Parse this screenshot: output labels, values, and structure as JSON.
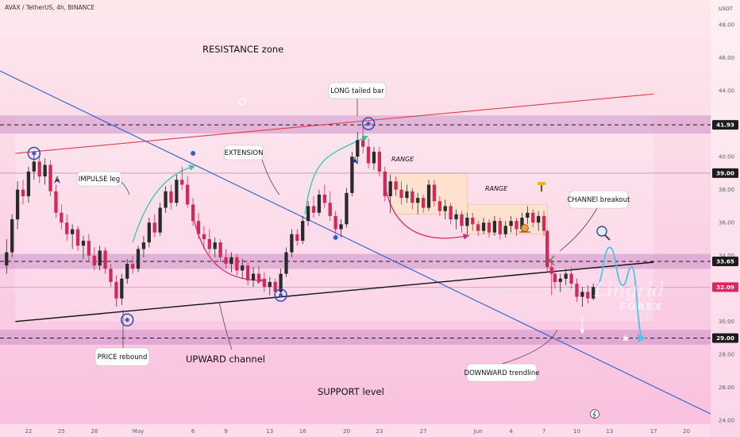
{
  "header": {
    "title": "AVAX / TetherUS, 4h, BINANCE",
    "currency": "USDT"
  },
  "colors": {
    "background_top": "#fde8ec",
    "background_bottom": "#f9c0df",
    "candle_up": "#2a2a2a",
    "candle_down": "#d02a5a",
    "level_line": "#1a1a1a",
    "trend_blue": "#2f5fd0",
    "trend_red": "#e03c4a",
    "channel_black": "#111111",
    "teal_arrow": "#36c8a8",
    "pink_arrow": "#d0306c",
    "tag_bg": "#1c1c1c",
    "current_tag_bg": "#e0245e",
    "zone_purple": "#c98ac5"
  },
  "chart_data": {
    "type": "candlestick",
    "symbol": "AVAX / TetherUS",
    "timeframe": "4h",
    "exchange": "BINANCE",
    "y_axis": {
      "ticks": [
        "48.00",
        "46.00",
        "44.00",
        "42.00",
        "40.00",
        "38.00",
        "36.00",
        "34.00",
        "32.00",
        "30.00",
        "28.00",
        "26.00",
        "24.00"
      ],
      "ylim": [
        23.0,
        49.5
      ]
    },
    "x_axis": {
      "ticks": [
        "22",
        "25",
        "28",
        "May",
        "6",
        "9",
        "13",
        "16",
        "20",
        "23",
        "27",
        "Jun",
        "4",
        "7",
        "10",
        "13",
        "17",
        "20"
      ],
      "tick_days": [
        -9,
        -6,
        -3,
        1,
        6,
        9,
        13,
        16,
        20,
        23,
        27,
        32,
        35,
        38,
        41,
        44,
        48,
        51
      ],
      "xlim": [
        -11.6,
        53.2
      ]
    },
    "price_levels": [
      {
        "value": 41.93,
        "label": "41.93",
        "style": "dashed",
        "tag": "dark"
      },
      {
        "value": 39.0,
        "label": "39.00",
        "style": "thin",
        "tag": "dark"
      },
      {
        "value": 33.65,
        "label": "33.65",
        "style": "dashed",
        "tag": "dark"
      },
      {
        "value": 32.09,
        "label": "32.09",
        "style": "thin-red",
        "tag": "current"
      },
      {
        "value": 29.0,
        "label": "29.00",
        "style": "dashed",
        "tag": "dark"
      }
    ],
    "zones": [
      {
        "name": "resistance",
        "y": [
          41.4,
          42.5
        ]
      },
      {
        "name": "mid-support",
        "y": [
          33.2,
          34.1
        ]
      },
      {
        "name": "support",
        "y": [
          28.6,
          29.5
        ]
      },
      {
        "name": "range-1",
        "x": [
          24.0,
          31.0
        ],
        "y": [
          36.5,
          39.0
        ]
      },
      {
        "name": "range-2",
        "x": [
          31.0,
          38.3
        ],
        "y": [
          35.3,
          37.1
        ]
      }
    ],
    "trendlines": [
      {
        "name": "downward-trendline",
        "color": "blue",
        "points": [
          [
            -11.6,
            45.2
          ],
          [
            53.2,
            24.4
          ]
        ]
      },
      {
        "name": "channel-top",
        "color": "red",
        "points": [
          [
            -10.2,
            40.2
          ],
          [
            48.0,
            43.8
          ]
        ]
      },
      {
        "name": "upward-channel-bottom",
        "color": "black",
        "points": [
          [
            -10.2,
            30.0
          ],
          [
            48.0,
            33.6
          ]
        ]
      }
    ],
    "candles": [
      [
        -11,
        33.4,
        35.0,
        32.9,
        34.2
      ],
      [
        -10.5,
        34.2,
        36.5,
        33.9,
        36.2
      ],
      [
        -10,
        36.2,
        38.5,
        35.6,
        38.0
      ],
      [
        -9.5,
        38.0,
        38.6,
        37.1,
        37.6
      ],
      [
        -9,
        37.6,
        39.4,
        37.2,
        39.1
      ],
      [
        -8.5,
        39.1,
        40.2,
        38.6,
        39.7
      ],
      [
        -8,
        39.7,
        40.1,
        38.4,
        38.8
      ],
      [
        -7.5,
        38.8,
        39.9,
        38.3,
        39.5
      ],
      [
        -7,
        39.5,
        39.8,
        37.6,
        37.9
      ],
      [
        -6.5,
        37.9,
        38.3,
        36.3,
        36.6
      ],
      [
        -6,
        36.6,
        37.1,
        35.6,
        36.0
      ],
      [
        -5.5,
        36.0,
        36.5,
        34.9,
        35.3
      ],
      [
        -5,
        35.3,
        35.9,
        34.4,
        35.6
      ],
      [
        -4.5,
        35.6,
        35.8,
        34.3,
        34.6
      ],
      [
        -4,
        34.6,
        35.2,
        33.8,
        34.9
      ],
      [
        -3.5,
        34.9,
        35.3,
        33.7,
        34.0
      ],
      [
        -3,
        34.0,
        34.5,
        33.1,
        33.4
      ],
      [
        -2.5,
        33.4,
        34.6,
        33.1,
        34.3
      ],
      [
        -2,
        34.3,
        34.5,
        32.9,
        33.2
      ],
      [
        -1.5,
        33.2,
        33.5,
        32.1,
        32.4
      ],
      [
        -1,
        32.4,
        32.8,
        30.9,
        31.4
      ],
      [
        -0.5,
        31.4,
        32.9,
        31.0,
        32.6
      ],
      [
        0,
        32.6,
        33.8,
        32.3,
        33.5
      ],
      [
        0.5,
        33.5,
        34.0,
        32.9,
        33.2
      ],
      [
        1,
        33.2,
        34.6,
        33.0,
        34.4
      ],
      [
        1.5,
        34.4,
        35.2,
        33.9,
        34.8
      ],
      [
        2,
        34.8,
        36.3,
        34.5,
        36.0
      ],
      [
        2.5,
        36.0,
        36.5,
        35.1,
        35.4
      ],
      [
        3,
        35.4,
        37.2,
        35.2,
        36.9
      ],
      [
        3.5,
        36.9,
        38.2,
        36.6,
        37.9
      ],
      [
        4,
        37.9,
        38.3,
        36.8,
        37.2
      ],
      [
        4.5,
        37.2,
        38.9,
        37.0,
        38.6
      ],
      [
        5,
        38.6,
        39.4,
        38.0,
        38.3
      ],
      [
        5.5,
        38.3,
        38.8,
        36.9,
        37.1
      ],
      [
        6,
        37.1,
        37.5,
        35.8,
        36.1
      ],
      [
        6.5,
        36.1,
        36.6,
        35.0,
        35.3
      ],
      [
        7,
        35.3,
        35.8,
        34.4,
        35.0
      ],
      [
        7.5,
        35.0,
        35.6,
        34.1,
        34.4
      ],
      [
        8,
        34.4,
        35.1,
        33.9,
        34.8
      ],
      [
        8.5,
        34.8,
        35.0,
        33.6,
        33.9
      ],
      [
        9,
        33.9,
        34.4,
        33.2,
        33.5
      ],
      [
        9.5,
        33.5,
        34.2,
        33.0,
        33.9
      ],
      [
        10,
        33.9,
        34.1,
        32.8,
        33.1
      ],
      [
        10.5,
        33.1,
        33.8,
        32.6,
        33.4
      ],
      [
        11,
        33.4,
        33.6,
        32.2,
        32.5
      ],
      [
        11.5,
        32.5,
        33.3,
        32.1,
        32.9
      ],
      [
        12,
        32.9,
        33.4,
        32.3,
        32.6
      ],
      [
        12.5,
        32.6,
        33.0,
        31.8,
        32.1
      ],
      [
        13,
        32.1,
        32.7,
        31.6,
        32.4
      ],
      [
        13.5,
        32.4,
        32.6,
        31.5,
        31.8
      ],
      [
        14,
        31.8,
        33.2,
        31.6,
        32.9
      ],
      [
        14.5,
        32.9,
        34.5,
        32.7,
        34.2
      ],
      [
        15,
        34.2,
        35.6,
        33.9,
        35.3
      ],
      [
        15.5,
        35.3,
        35.6,
        34.6,
        34.9
      ],
      [
        16,
        34.9,
        36.4,
        34.7,
        36.1
      ],
      [
        16.5,
        36.1,
        37.3,
        35.8,
        37.0
      ],
      [
        17,
        37.0,
        37.6,
        36.3,
        36.6
      ],
      [
        17.5,
        36.6,
        38.0,
        36.4,
        37.7
      ],
      [
        18,
        37.7,
        38.3,
        36.9,
        37.2
      ],
      [
        18.5,
        37.2,
        37.9,
        36.1,
        36.4
      ],
      [
        19,
        36.4,
        36.7,
        35.3,
        35.6
      ],
      [
        19.5,
        35.6,
        36.2,
        35.1,
        35.9
      ],
      [
        20,
        35.9,
        38.1,
        35.7,
        37.8
      ],
      [
        20.5,
        37.8,
        40.3,
        37.6,
        40.0
      ],
      [
        21,
        40.0,
        41.5,
        39.6,
        41.0
      ],
      [
        21.5,
        41.0,
        42.0,
        40.2,
        40.6
      ],
      [
        22,
        40.6,
        41.1,
        39.3,
        39.6
      ],
      [
        22.5,
        39.6,
        40.6,
        39.2,
        40.3
      ],
      [
        23,
        40.3,
        40.6,
        38.8,
        39.1
      ],
      [
        23.5,
        39.1,
        39.4,
        37.3,
        37.6
      ],
      [
        24,
        37.6,
        38.9,
        36.6,
        38.5
      ],
      [
        24.5,
        38.5,
        38.8,
        37.6,
        38.0
      ],
      [
        25,
        38.0,
        38.5,
        37.1,
        37.5
      ],
      [
        25.5,
        37.5,
        38.3,
        37.2,
        37.9
      ],
      [
        26,
        37.9,
        38.1,
        36.8,
        37.2
      ],
      [
        26.5,
        37.2,
        37.8,
        36.5,
        37.5
      ],
      [
        27,
        37.5,
        37.7,
        36.6,
        36.9
      ],
      [
        27.5,
        36.9,
        38.6,
        36.7,
        38.3
      ],
      [
        28,
        38.3,
        38.6,
        37.0,
        37.3
      ],
      [
        28.5,
        37.3,
        37.6,
        36.4,
        36.7
      ],
      [
        29,
        36.7,
        37.4,
        36.2,
        37.0
      ],
      [
        29.5,
        37.0,
        37.2,
        35.9,
        36.2
      ],
      [
        30,
        36.2,
        36.8,
        35.6,
        36.5
      ],
      [
        30.5,
        36.5,
        36.7,
        35.4,
        35.8
      ],
      [
        31,
        35.8,
        36.6,
        35.3,
        36.3
      ],
      [
        31.5,
        36.3,
        36.6,
        35.5,
        35.9
      ],
      [
        32,
        35.9,
        36.1,
        35.2,
        35.5
      ],
      [
        32.5,
        35.5,
        36.3,
        35.3,
        36.0
      ],
      [
        33,
        36.0,
        36.2,
        35.1,
        35.4
      ],
      [
        33.5,
        35.4,
        36.4,
        35.2,
        36.1
      ],
      [
        34,
        36.1,
        36.3,
        35.0,
        35.3
      ],
      [
        34.5,
        35.3,
        36.1,
        35.1,
        35.8
      ],
      [
        35,
        35.8,
        36.4,
        35.4,
        36.1
      ],
      [
        35.5,
        36.1,
        36.3,
        35.2,
        35.6
      ],
      [
        36,
        35.6,
        36.6,
        35.4,
        36.3
      ],
      [
        36.5,
        36.3,
        37.0,
        35.9,
        36.6
      ],
      [
        37,
        36.6,
        36.8,
        35.7,
        36.0
      ],
      [
        37.5,
        36.0,
        36.7,
        35.5,
        36.4
      ],
      [
        38,
        36.4,
        36.7,
        35.2,
        35.5
      ],
      [
        38.3,
        35.5,
        35.6,
        33.0,
        33.3
      ],
      [
        38.7,
        33.3,
        33.7,
        31.6,
        32.9
      ],
      [
        39,
        32.9,
        33.2,
        32.0,
        32.4
      ],
      [
        39.5,
        32.4,
        32.9,
        31.8,
        32.6
      ],
      [
        40,
        32.6,
        33.2,
        32.2,
        32.9
      ],
      [
        40.5,
        32.9,
        33.3,
        32.0,
        32.3
      ],
      [
        41,
        32.3,
        32.6,
        31.2,
        31.5
      ],
      [
        41.5,
        31.5,
        32.1,
        30.9,
        31.8
      ],
      [
        42,
        31.8,
        32.2,
        31.1,
        31.4
      ],
      [
        42.5,
        31.4,
        32.3,
        31.3,
        32.09
      ]
    ],
    "projection": {
      "name": "projected-path",
      "points": [
        [
          42.8,
          32.2
        ],
        [
          44.0,
          34.5
        ],
        [
          45.2,
          32.2
        ],
        [
          46.0,
          33.3
        ],
        [
          47.0,
          29.0
        ]
      ]
    }
  },
  "annotations": {
    "resistance_zone": "RESISTANCE zone",
    "long_tailed_bar": "LONG tailed bar",
    "extension": "EXTENSION",
    "impulse_leg": "IMPULSE leg",
    "range_1": "RANGE",
    "range_2": "RANGE",
    "channel_breakout": "CHANNEl breakout",
    "price_rebound": "PRICE rebound",
    "upward_channel": "UPWARD channel",
    "support_level": "SUPPORT level",
    "downward_trendline": "DOWNWARD trendline"
  },
  "brand": {
    "name": "Lingrid",
    "sub": "FOREX"
  }
}
